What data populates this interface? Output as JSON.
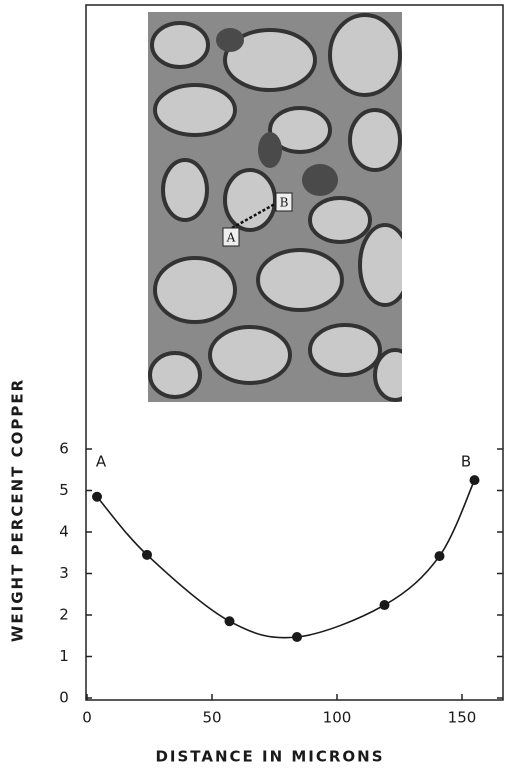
{
  "chart_data": {
    "type": "line",
    "xlabel": "DISTANCE IN MICRONS",
    "ylabel": "WEIGHT PERCENT COPPER",
    "annotations": [
      "A",
      "B"
    ],
    "x": [
      4,
      24,
      57,
      84,
      119,
      141,
      155
    ],
    "series": [
      {
        "color": "#1a1a1a",
        "values": [
          4.85,
          3.45,
          1.85,
          1.47,
          2.24,
          3.42,
          5.25
        ]
      }
    ],
    "xlim": [
      0,
      166
    ],
    "xticks": [
      0,
      50,
      {
        "value": 100,
        "label": "100"
      },
      150
    ],
    "ylim": [
      0,
      6
    ],
    "yticks": [
      0,
      1,
      2,
      3,
      4,
      5,
      6
    ]
  },
  "micrograph": {
    "labels": [
      "A",
      "B"
    ]
  }
}
